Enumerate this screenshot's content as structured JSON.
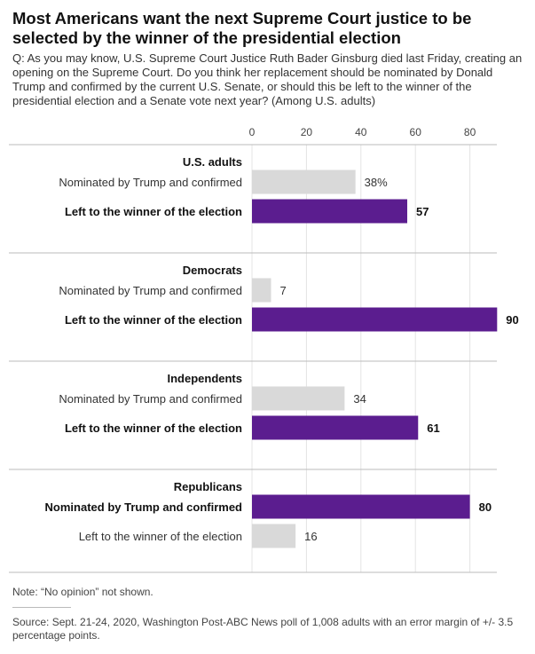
{
  "title": "Most Americans want the next Supreme Court justice to be selected by the winner of the presidential election",
  "question": "Q: As you may know, U.S. Supreme Court Justice Ruth Bader Ginsburg died last Friday, creating an opening on the Supreme Court. Do you think her replacement should be nominated by Donald Trump and confirmed by the current U.S. Senate, or should this be left to the winner of the presidential election and a Senate vote next year? (Among U.S. adults)",
  "note": "Note: “No opinion” not shown.",
  "source": "Source: Sept. 21-24, 2020, Washington Post-ABC News poll of 1,008 adults with an error margin of +/- 3.5 percentage points.",
  "colors": {
    "highlight": "#5b1d8f",
    "muted": "#d9d9d9",
    "rule": "#bbbbbb"
  },
  "chart_data": {
    "type": "bar",
    "orientation": "horizontal",
    "xlim": [
      0,
      90
    ],
    "xticks": [
      "0",
      "20",
      "40",
      "60",
      "80"
    ],
    "grid": true,
    "groups": [
      {
        "name": "U.S. adults",
        "bars": [
          {
            "label": "Nominated by Trump and confirmed",
            "value": 38,
            "display": "38%",
            "highlight": false
          },
          {
            "label": "Left to the winner of the election",
            "value": 57,
            "display": "57",
            "highlight": true
          }
        ]
      },
      {
        "name": "Democrats",
        "bars": [
          {
            "label": "Nominated by Trump and confirmed",
            "value": 7,
            "display": "7",
            "highlight": false
          },
          {
            "label": "Left to the winner of the election",
            "value": 90,
            "display": "90",
            "highlight": true
          }
        ]
      },
      {
        "name": "Independents",
        "bars": [
          {
            "label": "Nominated by Trump and confirmed",
            "value": 34,
            "display": "34",
            "highlight": false
          },
          {
            "label": "Left to the winner of the election",
            "value": 61,
            "display": "61",
            "highlight": true
          }
        ]
      },
      {
        "name": "Republicans",
        "bars": [
          {
            "label": "Nominated by Trump and confirmed",
            "value": 80,
            "display": "80",
            "highlight": true
          },
          {
            "label": "Left to the winner of the election",
            "value": 16,
            "display": "16",
            "highlight": false
          }
        ]
      }
    ]
  }
}
